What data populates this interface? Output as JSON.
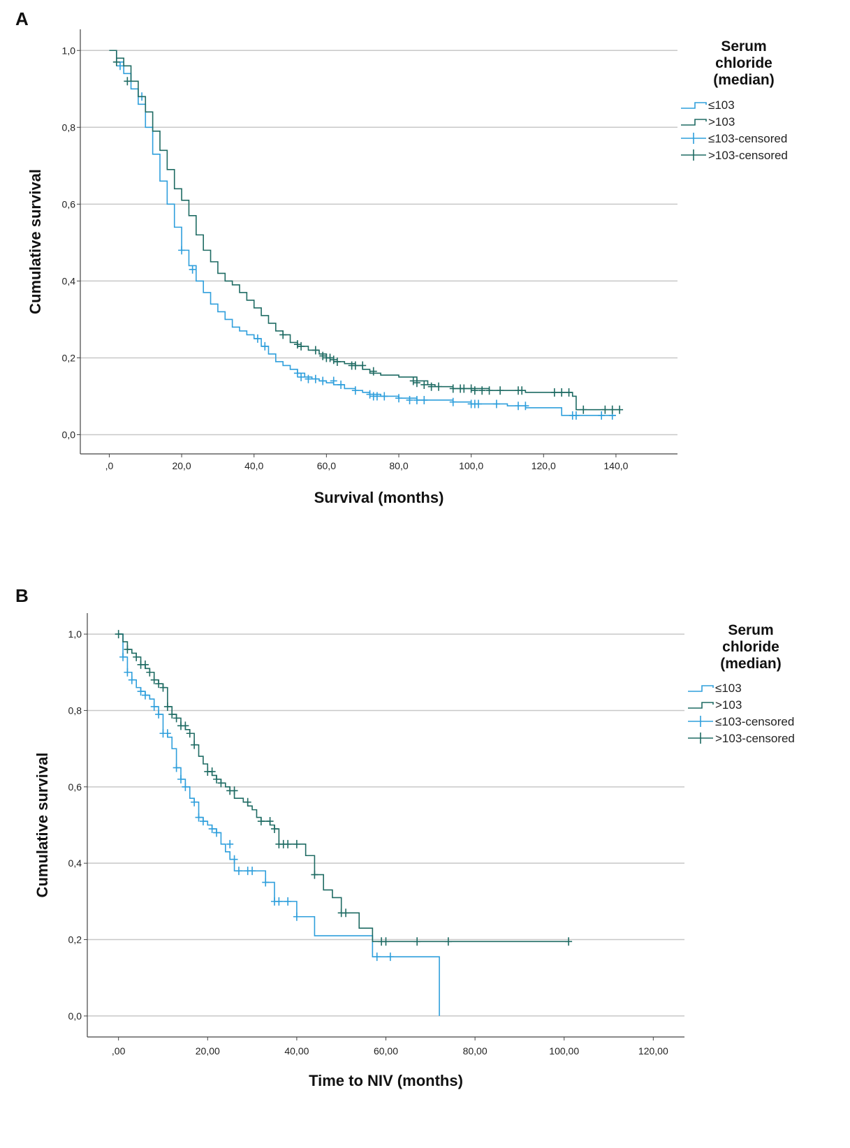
{
  "colors": {
    "low": "#2f9fdc",
    "high": "#1f6b63",
    "grid": "#c8c8c8",
    "axis": "#444444"
  },
  "chart_data": [
    {
      "panel": "A",
      "type": "line",
      "title": "",
      "xlabel": "Survival (months)",
      "ylabel": "Cumulative survival",
      "xlim": [
        -8,
        157
      ],
      "ylim": [
        -0.05,
        1.055
      ],
      "x_ticks": [
        0,
        20,
        40,
        60,
        80,
        100,
        120,
        140
      ],
      "x_tick_labels": [
        ",0",
        "20,0",
        "40,0",
        "60,0",
        "80,0",
        "100,0",
        "120,0",
        "140,0"
      ],
      "y_ticks": [
        0,
        0.2,
        0.4,
        0.6,
        0.8,
        1.0
      ],
      "y_tick_labels": [
        "0,0",
        "0,2",
        "0,4",
        "0,6",
        "0,8",
        "1,0"
      ],
      "grid": true,
      "legend_title_lines": [
        "Serum",
        "chloride",
        "(median)"
      ],
      "legend": [
        "≤103",
        ">103",
        "≤103-censored",
        ">103-censored"
      ],
      "series": [
        {
          "name": "≤103",
          "color_key": "low",
          "x": [
            0,
            2,
            4,
            6,
            8,
            10,
            12,
            14,
            16,
            18,
            20,
            22,
            24,
            26,
            28,
            30,
            32,
            34,
            36,
            38,
            40,
            42,
            44,
            46,
            48,
            50,
            52,
            54,
            56,
            58,
            60,
            62,
            65,
            68,
            70,
            72,
            75,
            80,
            85,
            90,
            95,
            100,
            105,
            110,
            115,
            120,
            125,
            130,
            135,
            140
          ],
          "y": [
            1.0,
            0.97,
            0.94,
            0.9,
            0.86,
            0.8,
            0.73,
            0.66,
            0.6,
            0.54,
            0.48,
            0.44,
            0.4,
            0.37,
            0.34,
            0.32,
            0.3,
            0.28,
            0.27,
            0.26,
            0.25,
            0.23,
            0.21,
            0.19,
            0.18,
            0.17,
            0.16,
            0.15,
            0.145,
            0.14,
            0.135,
            0.13,
            0.12,
            0.115,
            0.11,
            0.105,
            0.1,
            0.095,
            0.09,
            0.09,
            0.085,
            0.08,
            0.08,
            0.075,
            0.07,
            0.07,
            0.05,
            0.05,
            0.05,
            0.05
          ],
          "censored_x": [
            3,
            9,
            20,
            23,
            41,
            43,
            52,
            53,
            55,
            57,
            59,
            62,
            64,
            68,
            72,
            73,
            74,
            76,
            80,
            83,
            85,
            87,
            95,
            100,
            101,
            102,
            107,
            113,
            115,
            128,
            129,
            136,
            139
          ],
          "censored_y": [
            0.96,
            0.88,
            0.48,
            0.43,
            0.25,
            0.23,
            0.16,
            0.15,
            0.145,
            0.145,
            0.14,
            0.14,
            0.13,
            0.115,
            0.105,
            0.1,
            0.1,
            0.1,
            0.095,
            0.09,
            0.09,
            0.09,
            0.085,
            0.08,
            0.08,
            0.08,
            0.08,
            0.075,
            0.075,
            0.05,
            0.05,
            0.05,
            0.05
          ]
        },
        {
          "name": ">103",
          "color_key": "high",
          "x": [
            0,
            2,
            4,
            6,
            8,
            10,
            12,
            14,
            16,
            18,
            20,
            22,
            24,
            26,
            28,
            30,
            32,
            34,
            36,
            38,
            40,
            42,
            44,
            46,
            48,
            50,
            52,
            55,
            58,
            60,
            62,
            65,
            68,
            70,
            72,
            75,
            80,
            85,
            88,
            90,
            95,
            100,
            105,
            110,
            115,
            120,
            125,
            128,
            129,
            135,
            141
          ],
          "y": [
            1.0,
            0.98,
            0.96,
            0.92,
            0.88,
            0.84,
            0.79,
            0.74,
            0.69,
            0.64,
            0.61,
            0.57,
            0.52,
            0.48,
            0.45,
            0.42,
            0.4,
            0.39,
            0.37,
            0.35,
            0.33,
            0.31,
            0.29,
            0.27,
            0.26,
            0.24,
            0.23,
            0.22,
            0.21,
            0.2,
            0.19,
            0.185,
            0.18,
            0.17,
            0.16,
            0.155,
            0.15,
            0.14,
            0.13,
            0.125,
            0.12,
            0.12,
            0.115,
            0.115,
            0.11,
            0.11,
            0.11,
            0.1,
            0.065,
            0.065,
            0.065
          ],
          "censored_x": [
            2,
            5,
            48,
            52,
            53,
            57,
            59,
            60,
            61,
            62,
            63,
            67,
            68,
            70,
            73,
            84,
            85,
            87,
            89,
            91,
            95,
            97,
            98,
            100,
            101,
            103,
            105,
            108,
            113,
            114,
            123,
            125,
            127,
            131,
            137,
            139,
            141
          ],
          "censored_y": [
            0.97,
            0.92,
            0.26,
            0.235,
            0.23,
            0.22,
            0.205,
            0.2,
            0.2,
            0.195,
            0.19,
            0.18,
            0.18,
            0.18,
            0.165,
            0.14,
            0.135,
            0.13,
            0.125,
            0.125,
            0.12,
            0.12,
            0.12,
            0.12,
            0.115,
            0.115,
            0.115,
            0.115,
            0.115,
            0.115,
            0.11,
            0.11,
            0.11,
            0.065,
            0.065,
            0.065,
            0.065
          ]
        }
      ]
    },
    {
      "panel": "B",
      "type": "line",
      "title": "",
      "xlabel": "Time to NIV (months)",
      "ylabel": "Cumulative survival",
      "xlim": [
        -7,
        127
      ],
      "ylim": [
        -0.055,
        1.055
      ],
      "x_ticks": [
        0,
        20,
        40,
        60,
        80,
        100,
        120
      ],
      "x_tick_labels": [
        ",00",
        "20,00",
        "40,00",
        "60,00",
        "80,00",
        "100,00",
        "120,00"
      ],
      "y_ticks": [
        0,
        0.2,
        0.4,
        0.6,
        0.8,
        1.0
      ],
      "y_tick_labels": [
        "0,0",
        "0,2",
        "0,4",
        "0,6",
        "0,8",
        "1,0"
      ],
      "grid": true,
      "legend_title_lines": [
        "Serum",
        "chloride",
        "(median)"
      ],
      "legend": [
        "≤103",
        ">103",
        "≤103-censored",
        ">103-censored"
      ],
      "series": [
        {
          "name": "≤103",
          "color_key": "low",
          "x": [
            0,
            1,
            2,
            3,
            4,
            5,
            6,
            7,
            8,
            9,
            10,
            11,
            12,
            13,
            14,
            15,
            16,
            17,
            18,
            19,
            20,
            21,
            22,
            23,
            24,
            25,
            26,
            28,
            30,
            33,
            35,
            38,
            40,
            44,
            50,
            57,
            60,
            65,
            72,
            72
          ],
          "y": [
            1.0,
            0.94,
            0.9,
            0.88,
            0.86,
            0.85,
            0.84,
            0.83,
            0.81,
            0.79,
            0.74,
            0.73,
            0.7,
            0.65,
            0.62,
            0.6,
            0.57,
            0.56,
            0.52,
            0.51,
            0.5,
            0.49,
            0.48,
            0.45,
            0.43,
            0.41,
            0.38,
            0.38,
            0.38,
            0.35,
            0.3,
            0.3,
            0.26,
            0.21,
            0.21,
            0.155,
            0.155,
            0.155,
            0.155,
            0.0
          ],
          "censored_x": [
            1,
            2,
            3,
            5,
            6,
            8,
            9,
            10,
            11,
            13,
            14,
            15,
            17,
            18,
            19,
            21,
            22,
            25,
            26,
            27,
            29,
            30,
            33,
            35,
            36,
            38,
            40,
            58,
            61
          ],
          "censored_y": [
            0.94,
            0.9,
            0.88,
            0.85,
            0.84,
            0.81,
            0.79,
            0.74,
            0.74,
            0.65,
            0.62,
            0.6,
            0.56,
            0.52,
            0.51,
            0.49,
            0.48,
            0.45,
            0.41,
            0.38,
            0.38,
            0.38,
            0.35,
            0.3,
            0.3,
            0.3,
            0.26,
            0.155,
            0.155
          ]
        },
        {
          "name": ">103",
          "color_key": "high",
          "x": [
            0,
            1,
            2,
            3,
            4,
            5,
            6,
            7,
            8,
            9,
            10,
            11,
            12,
            13,
            14,
            15,
            16,
            17,
            18,
            19,
            20,
            21,
            22,
            23,
            24,
            25,
            26,
            27,
            28,
            29,
            30,
            31,
            32,
            33,
            34,
            35,
            36,
            38,
            40,
            42,
            44,
            46,
            48,
            50,
            52,
            54,
            57,
            60,
            70,
            80,
            101
          ],
          "y": [
            1.0,
            0.98,
            0.96,
            0.95,
            0.94,
            0.92,
            0.91,
            0.9,
            0.88,
            0.87,
            0.86,
            0.81,
            0.79,
            0.78,
            0.76,
            0.75,
            0.74,
            0.71,
            0.68,
            0.66,
            0.64,
            0.63,
            0.62,
            0.61,
            0.6,
            0.59,
            0.57,
            0.57,
            0.56,
            0.55,
            0.54,
            0.52,
            0.51,
            0.51,
            0.5,
            0.49,
            0.45,
            0.45,
            0.45,
            0.42,
            0.37,
            0.33,
            0.31,
            0.27,
            0.27,
            0.23,
            0.195,
            0.195,
            0.195,
            0.195,
            0.195
          ],
          "censored_x": [
            0,
            2,
            4,
            5,
            6,
            7,
            8,
            9,
            10,
            11,
            12,
            13,
            14,
            15,
            16,
            17,
            20,
            21,
            22,
            23,
            25,
            26,
            29,
            32,
            34,
            35,
            36,
            37,
            38,
            40,
            44,
            50,
            51,
            59,
            60,
            67,
            74,
            101
          ],
          "censored_y": [
            1.0,
            0.96,
            0.94,
            0.92,
            0.92,
            0.9,
            0.88,
            0.87,
            0.86,
            0.81,
            0.79,
            0.78,
            0.76,
            0.76,
            0.74,
            0.71,
            0.64,
            0.64,
            0.62,
            0.61,
            0.59,
            0.59,
            0.56,
            0.51,
            0.51,
            0.49,
            0.45,
            0.45,
            0.45,
            0.45,
            0.37,
            0.27,
            0.27,
            0.195,
            0.195,
            0.195,
            0.195,
            0.195
          ]
        }
      ]
    }
  ]
}
